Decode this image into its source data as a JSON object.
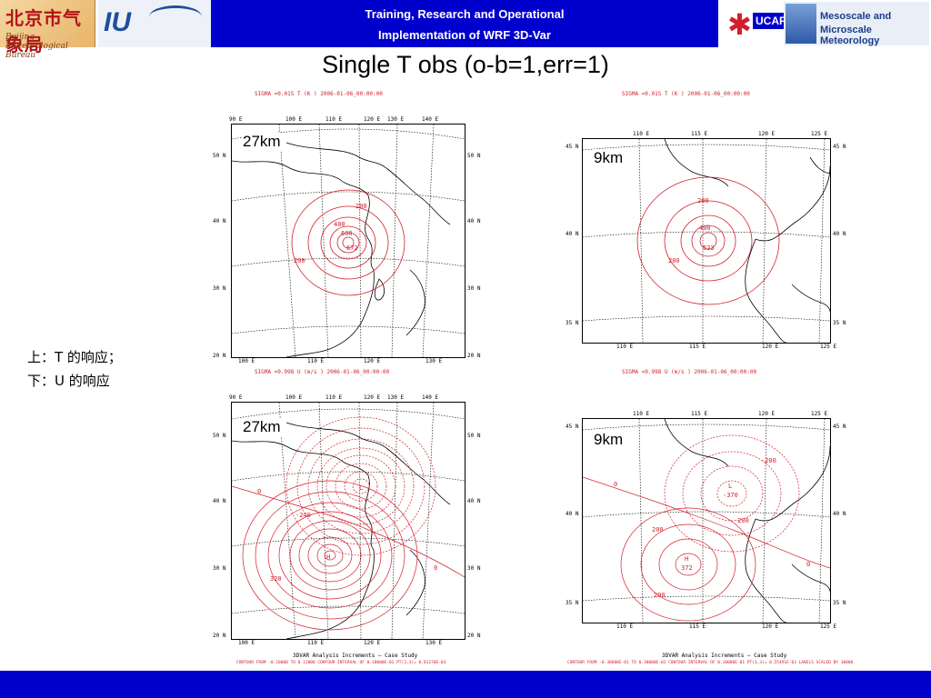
{
  "header": {
    "logo_bjmb_glyphs": "北京市气象局",
    "logo_bjmb_sub": "Beijing Meteorological Bureau",
    "logo_iup": "IU",
    "line1": "Training, Research and Operational",
    "line2": "Implementation of WRF 3D-Var",
    "ucar_text": "UCAR",
    "mmm_line1": "Mesoscale and",
    "mmm_line2": "Microscale Meteorology"
  },
  "title": "Single T obs (o-b=1,err=1)",
  "legend": {
    "line1": "上：T 的响应；",
    "line2": "下：U 的响应"
  },
  "panels": {
    "t27": {
      "resolution": "27km",
      "header": "SIGMA  =0.015     T       (K       )   2006-01-06_00:00:00",
      "top_lons": [
        "90 E",
        "100 E",
        "110 E",
        "120 E",
        "130 E",
        "140 E"
      ],
      "bottom_lons": [
        "100 E",
        "110 E",
        "120 E",
        "130 E"
      ],
      "lats": [
        "20 N",
        "30 N",
        "40 N",
        "50 N"
      ],
      "labels": [
        "200",
        "400",
        "600",
        "672",
        "200"
      ]
    },
    "t9": {
      "resolution": "9km",
      "header": "SIGMA  =0.015     T       (K       )   2006-01-06_00:00:00",
      "top_lons": [
        "110 E",
        "115 E",
        "120 E",
        "125 E"
      ],
      "bottom_lons": [
        "110 E",
        "115 E",
        "120 E",
        "125 E"
      ],
      "lats": [
        "35 N",
        "40 N",
        "45 N"
      ],
      "labels": [
        "200",
        "400",
        "523",
        "200"
      ]
    },
    "u27": {
      "resolution": "27km",
      "header": "SIGMA  =0.998     U       (m/s     )   2006-01-06_00:00:00",
      "top_lons": [
        "90 E",
        "100 E",
        "110 E",
        "120 E",
        "130 E",
        "140 E"
      ],
      "bottom_lons": [
        "100 E",
        "110 E",
        "120 E",
        "130 E"
      ],
      "lats": [
        "20 N",
        "30 N",
        "40 N",
        "50 N"
      ],
      "labels": [
        "H",
        "L",
        "0",
        "-240",
        "320",
        "0"
      ],
      "footer1": "3DVAR Analysis Increments — Case Study",
      "footer2": "CONTOUR FROM -0.10000  TO  0.11000  CONTOUR INTERVAL OF 0.10000E-01 PT(3,3)= 0.81270E-03"
    },
    "u9": {
      "resolution": "9km",
      "header": "SIGMA  =0.998     U       (m/s     )   2006-01-06_00:00:00",
      "top_lons": [
        "110 E",
        "115 E",
        "120 E",
        "125 E"
      ],
      "bottom_lons": [
        "110 E",
        "115 E",
        "120 E",
        "125 E"
      ],
      "lats": [
        "35 N",
        "40 N",
        "45 N"
      ],
      "labels": [
        "H",
        "372",
        "L",
        "-370",
        "-200",
        "-200",
        "200",
        "200",
        "0",
        "0"
      ],
      "footer1": "3DVAR Analysis Increments — Case Study",
      "footer2": "CONTOUR FROM -0.38000E-01 TO  0.38000E-01 CONTOUR INTERVAL OF 0.10000E-01 PT(3,3)= 0.55491E-03 LABELS SCALED BY  10000."
    }
  },
  "colors": {
    "header_blue": "#0000cc",
    "contour_red": "#d21f2b",
    "coast_black": "#000000"
  }
}
